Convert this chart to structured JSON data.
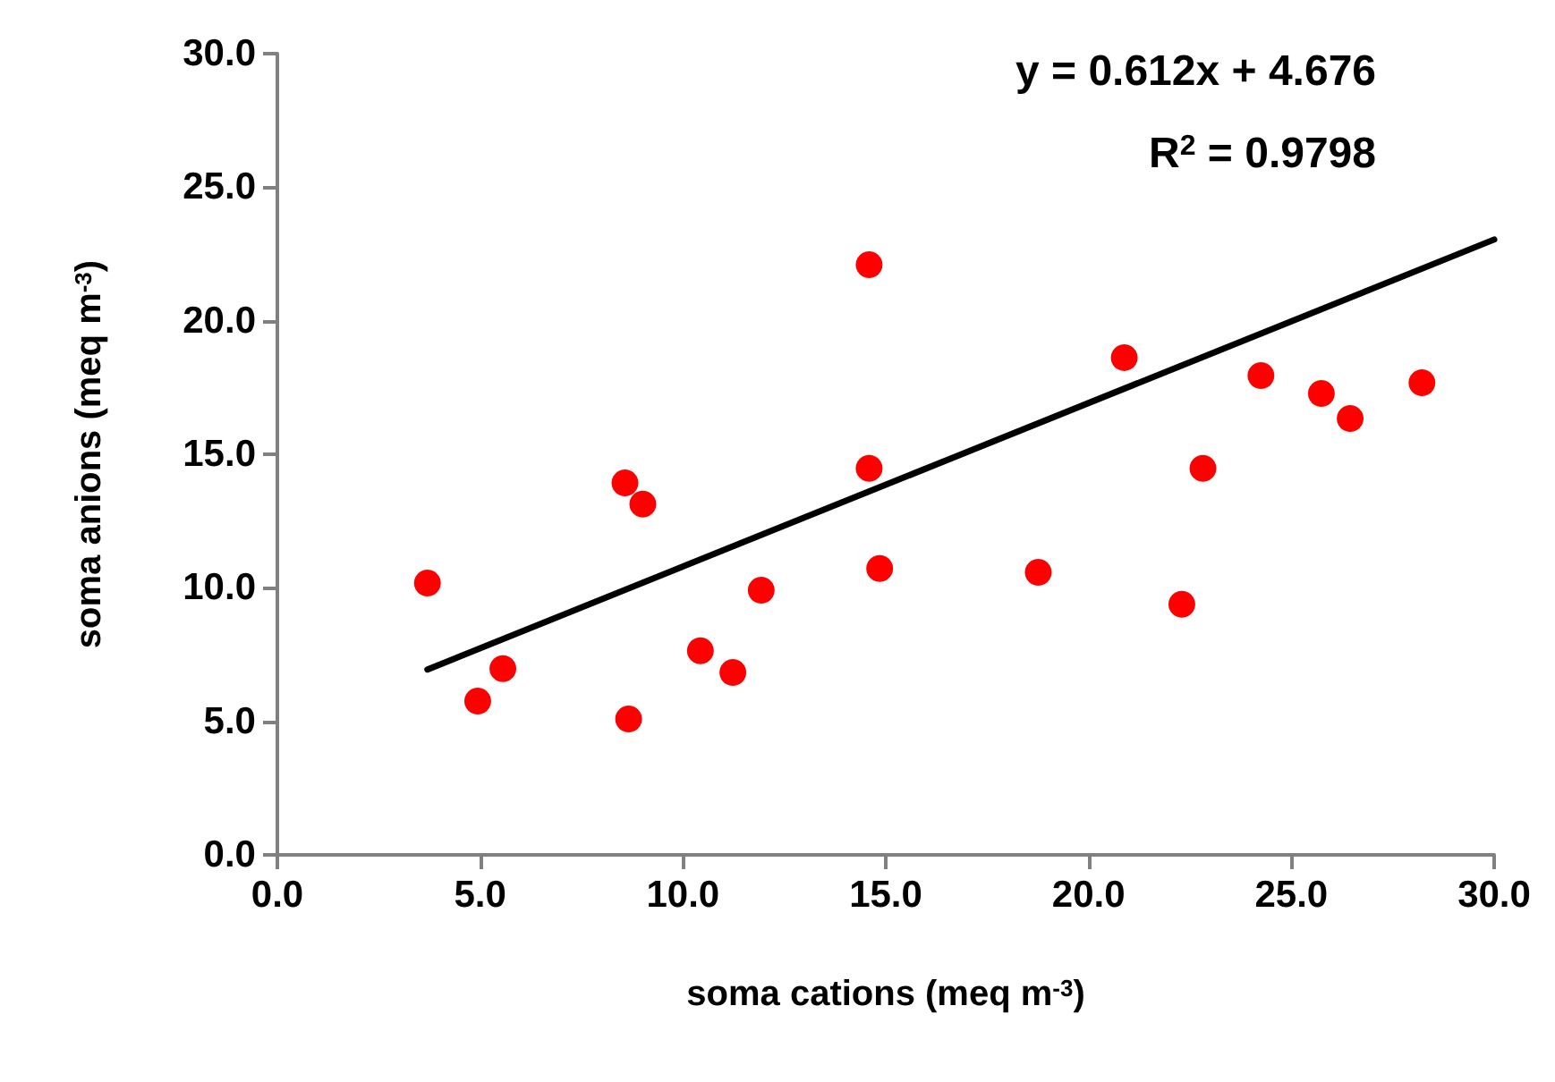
{
  "chart_data": {
    "type": "scatter",
    "xlabel": "soma cations (meq m$^{-3}$)",
    "ylabel": "soma anions (meq m$^{-3}$)",
    "annotations": [
      "y = 0.612x + 4.676",
      "R$^{2}$ = 0.9798"
    ],
    "x": [
      3.7,
      4.94,
      5.56,
      8.57,
      9.01,
      8.66,
      10.43,
      11.23,
      11.93,
      14.59,
      14.59,
      14.85,
      18.76,
      20.88,
      22.3,
      22.82,
      24.25,
      25.74,
      26.45,
      28.22
    ],
    "series": [
      {
        "color": "#ff0000",
        "marker": "circle",
        "values": [
          10.18,
          5.76,
          6.97,
          13.93,
          13.13,
          5.09,
          7.64,
          6.83,
          9.91,
          22.1,
          14.47,
          10.72,
          10.58,
          18.62,
          9.38,
          14.47,
          17.95,
          17.28,
          16.34,
          17.68
        ]
      },
      {
        "type": "line",
        "color": "#000000",
        "marker": "none",
        "line_style": "solid",
        "x": [
          3.7,
          30
        ],
        "values": [
          6.94,
          23.04
        ]
      }
    ],
    "xlim": [
      0,
      30
    ],
    "ylim": [
      0,
      30
    ],
    "xticks": [
      {
        "value": 0,
        "label": "0.0"
      },
      {
        "value": 5,
        "label": "5.0"
      },
      {
        "value": 10,
        "label": "10.0"
      },
      {
        "value": 15,
        "label": "15.0"
      },
      {
        "value": 20,
        "label": "20.0"
      },
      {
        "value": 25,
        "label": "25.0"
      },
      {
        "value": 30,
        "label": "30.0"
      }
    ],
    "yticks": [
      {
        "value": 0,
        "label": "0.0"
      },
      {
        "value": 5,
        "label": "5.0"
      },
      {
        "value": 10,
        "label": "10.0"
      },
      {
        "value": 15,
        "label": "15.0"
      },
      {
        "value": 20,
        "label": "20.0"
      },
      {
        "value": 25,
        "label": "25.0"
      },
      {
        "value": 30,
        "label": "30.0"
      }
    ],
    "grid": false
  }
}
